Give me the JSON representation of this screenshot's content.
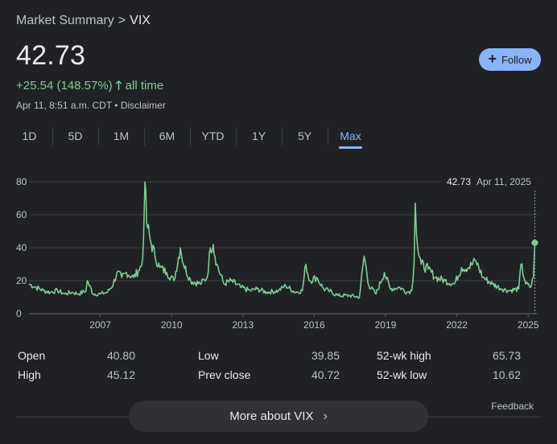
{
  "breadcrumb": {
    "parent": "Market Summary",
    "separator": ">",
    "symbol": "VIX"
  },
  "quote": {
    "price": "42.73",
    "change": "+25.54 (148.57%)",
    "change_period": "all time",
    "timestamp": "Apr 11, 8:51 a.m. CDT",
    "disclaimer": "Disclaimer"
  },
  "follow_label": "Follow",
  "tabs": [
    {
      "label": "1D"
    },
    {
      "label": "5D"
    },
    {
      "label": "1M"
    },
    {
      "label": "6M"
    },
    {
      "label": "YTD"
    },
    {
      "label": "1Y"
    },
    {
      "label": "5Y"
    },
    {
      "label": "Max",
      "active": true
    }
  ],
  "tooltip": {
    "value": "42.73",
    "date": "Apr 11, 2025"
  },
  "chart_data": {
    "type": "line",
    "title": "",
    "xlabel": "",
    "ylabel": "",
    "ylim": [
      0,
      80
    ],
    "xlim": [
      2004.0,
      2025.4
    ],
    "y_ticks": [
      0,
      20,
      40,
      60,
      80
    ],
    "x_ticks": [
      2007,
      2010,
      2013,
      2016,
      2019,
      2022,
      2025
    ],
    "grid": true,
    "color": "#81c995",
    "series": [
      {
        "x": [
          2004.0,
          2004.3,
          2004.6,
          2004.9,
          2005.2,
          2005.5,
          2005.8,
          2006.1,
          2006.4,
          2006.45,
          2006.7,
          2007.0,
          2007.3,
          2007.55,
          2007.7,
          2007.9,
          2008.1,
          2008.4,
          2008.6,
          2008.75,
          2008.82,
          2008.88,
          2008.95,
          2009.1,
          2009.3,
          2009.5,
          2009.8,
          2010.1,
          2010.37,
          2010.5,
          2010.8,
          2011.2,
          2011.5,
          2011.63,
          2011.75,
          2011.9,
          2012.2,
          2012.5,
          2012.9,
          2013.3,
          2013.6,
          2014.0,
          2014.5,
          2014.8,
          2015.2,
          2015.5,
          2015.65,
          2015.8,
          2016.1,
          2016.4,
          2016.6,
          2017.0,
          2017.5,
          2017.9,
          2018.1,
          2018.3,
          2018.6,
          2018.95,
          2019.2,
          2019.6,
          2019.9,
          2020.1,
          2020.2,
          2020.25,
          2020.35,
          2020.5,
          2020.8,
          2021.1,
          2021.5,
          2021.9,
          2022.2,
          2022.5,
          2022.8,
          2023.1,
          2023.5,
          2023.9,
          2024.2,
          2024.6,
          2024.7,
          2024.9,
          2025.1,
          2025.22,
          2025.28
        ],
        "y": [
          18,
          16,
          14,
          13,
          14,
          12,
          13,
          12,
          14,
          20,
          12,
          12,
          13,
          18,
          25,
          22,
          25,
          22,
          26,
          30,
          45,
          80,
          55,
          45,
          35,
          28,
          25,
          20,
          40,
          30,
          20,
          18,
          22,
          40,
          42,
          30,
          18,
          20,
          16,
          14,
          15,
          13,
          14,
          17,
          13,
          14,
          30,
          20,
          22,
          15,
          14,
          11,
          11,
          10,
          35,
          17,
          12,
          25,
          15,
          16,
          13,
          14,
          30,
          67,
          40,
          30,
          27,
          22,
          20,
          18,
          28,
          28,
          32,
          22,
          18,
          15,
          14,
          15,
          30,
          18,
          16,
          22,
          43
        ]
      }
    ]
  },
  "stats": [
    {
      "label": "Open",
      "value": "40.80"
    },
    {
      "label": "High",
      "value": "45.12"
    },
    {
      "label": "Low",
      "value": "39.85"
    },
    {
      "label": "Prev close",
      "value": "40.72"
    },
    {
      "label": "52-wk high",
      "value": "65.73"
    },
    {
      "label": "52-wk low",
      "value": "10.62"
    }
  ],
  "feedback_label": "Feedback",
  "more_label": "More about VIX"
}
